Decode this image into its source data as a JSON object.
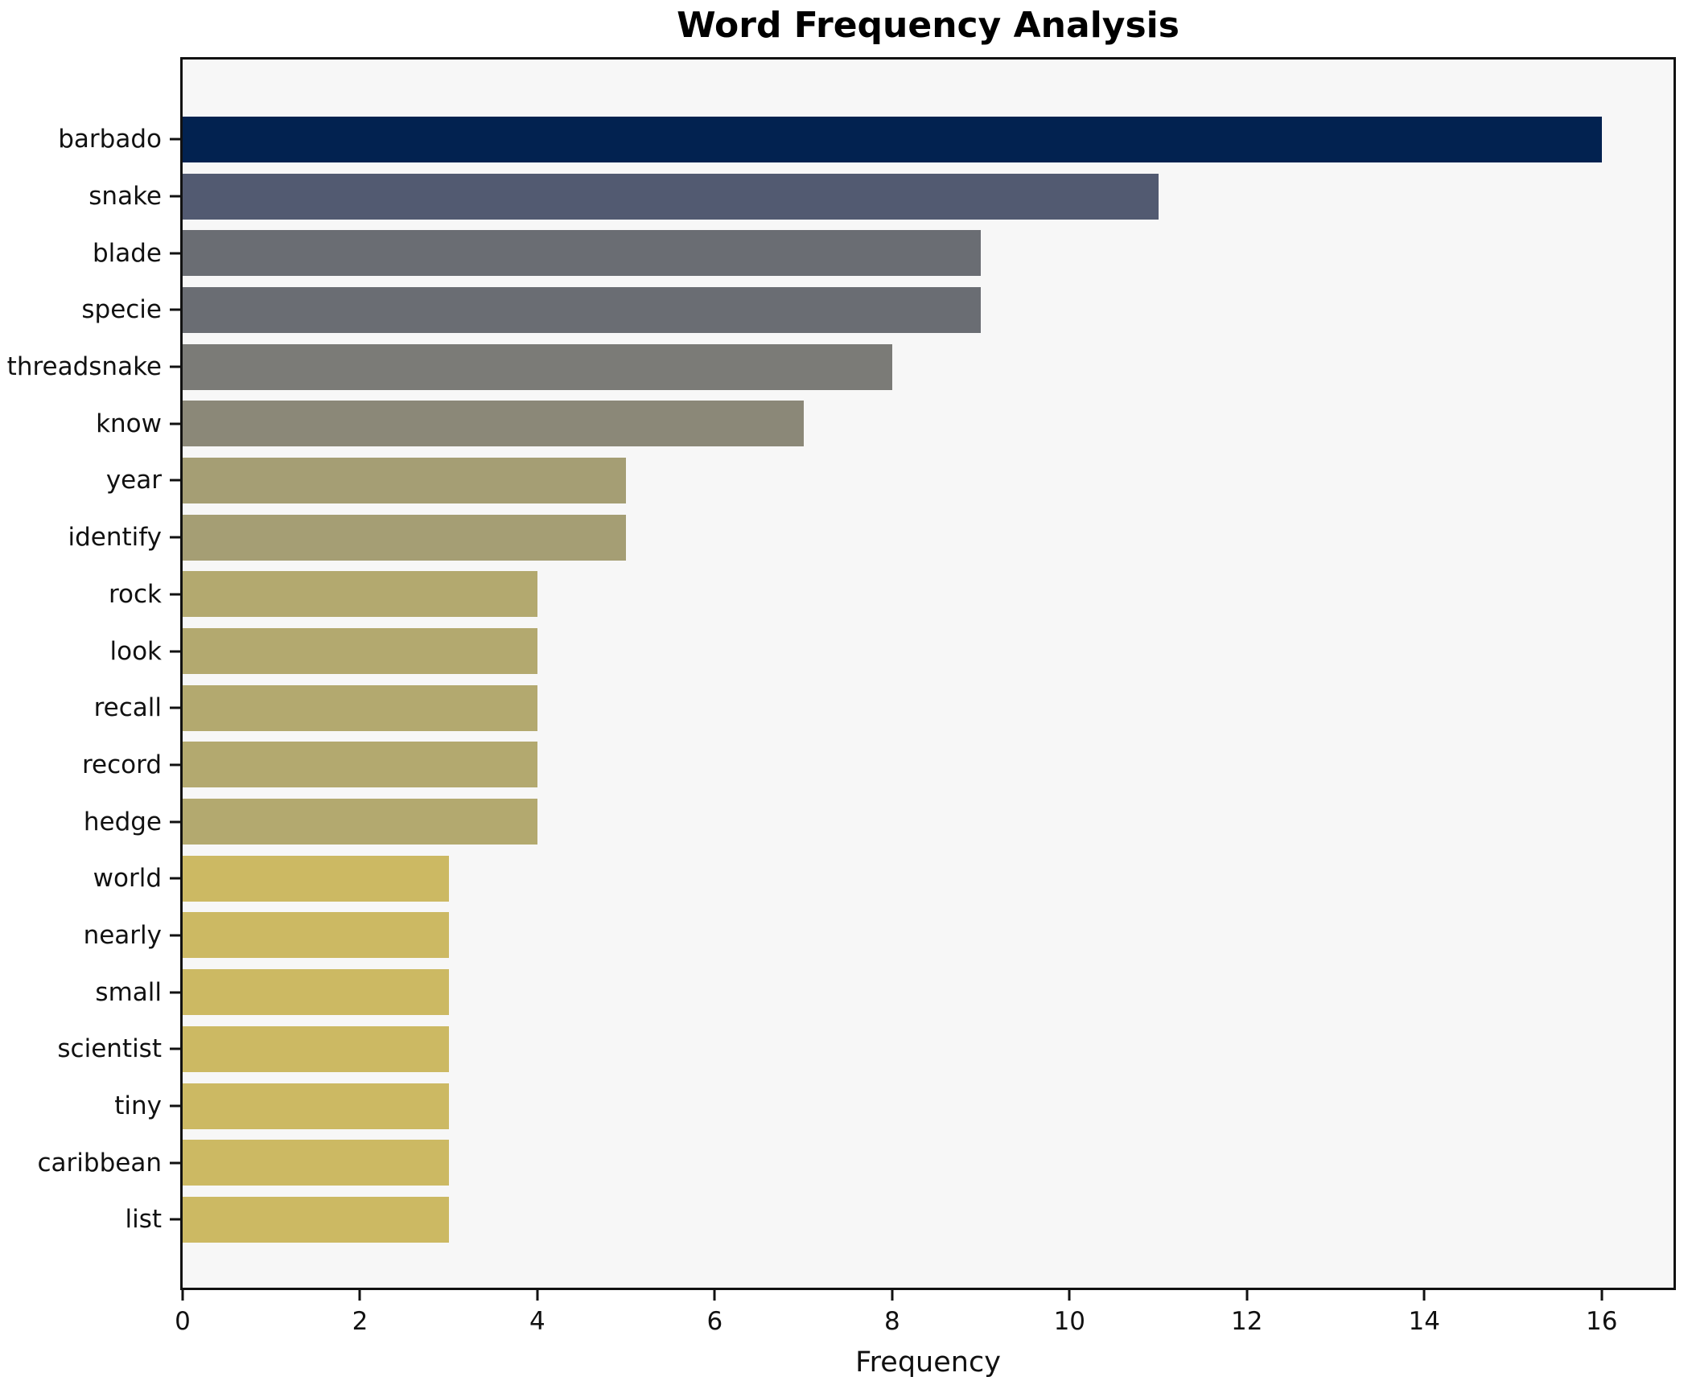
{
  "chart_data": {
    "type": "bar",
    "orientation": "horizontal",
    "title": "Word Frequency Analysis",
    "xlabel": "Frequency",
    "ylabel": "",
    "categories": [
      "barbado",
      "snake",
      "blade",
      "specie",
      "threadsnake",
      "know",
      "year",
      "identify",
      "rock",
      "look",
      "recall",
      "record",
      "hedge",
      "world",
      "nearly",
      "small",
      "scientist",
      "tiny",
      "caribbean",
      "list"
    ],
    "values": [
      16,
      11,
      9,
      9,
      8,
      7,
      5,
      5,
      4,
      4,
      4,
      4,
      4,
      3,
      3,
      3,
      3,
      3,
      3,
      3
    ],
    "bar_colors": [
      "#022250",
      "#525a71",
      "#6a6d73",
      "#6a6d73",
      "#7b7b77",
      "#8b8878",
      "#a59e74",
      "#a59e74",
      "#b3a96f",
      "#b3a96f",
      "#b3a96f",
      "#b3a96f",
      "#b3a96f",
      "#ccb963",
      "#ccb963",
      "#ccb963",
      "#ccb963",
      "#ccb963",
      "#ccb963",
      "#ccb963"
    ],
    "xticks": [
      0,
      2,
      4,
      6,
      8,
      10,
      12,
      14,
      16
    ],
    "xlim": [
      0,
      16.81
    ],
    "grid": false,
    "plot_background": "#f7f7f7",
    "figure_background": "#ffffff",
    "spine_color": "#111111",
    "text_color": "#111111"
  }
}
